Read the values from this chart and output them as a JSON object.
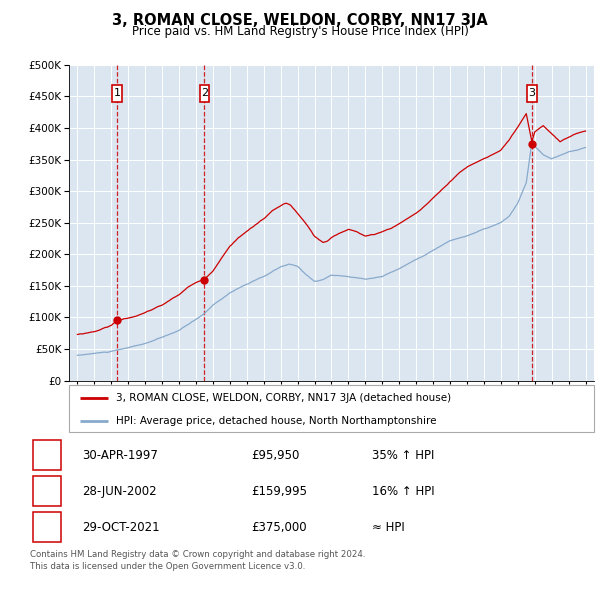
{
  "title": "3, ROMAN CLOSE, WELDON, CORBY, NN17 3JA",
  "subtitle": "Price paid vs. HM Land Registry's House Price Index (HPI)",
  "legend_line1": "3, ROMAN CLOSE, WELDON, CORBY, NN17 3JA (detached house)",
  "legend_line2": "HPI: Average price, detached house, North Northamptonshire",
  "footer1": "Contains HM Land Registry data © Crown copyright and database right 2024.",
  "footer2": "This data is licensed under the Open Government Licence v3.0.",
  "sales": [
    {
      "label": "1",
      "date": "30-APR-1997",
      "price": 95950,
      "hpi_note": "35% ↑ HPI",
      "x": 1997.33
    },
    {
      "label": "2",
      "date": "28-JUN-2002",
      "price": 159995,
      "hpi_note": "16% ↑ HPI",
      "x": 2002.5
    },
    {
      "label": "3",
      "date": "29-OCT-2021",
      "price": 375000,
      "hpi_note": "≈ HPI",
      "x": 2021.83
    }
  ],
  "price_color": "#cc0000",
  "hpi_color": "#88aacc",
  "vline_color": "#cc0000",
  "plot_bg": "#dce6f1",
  "ylim": [
    0,
    500000
  ],
  "xlim": [
    1994.5,
    2025.5
  ]
}
